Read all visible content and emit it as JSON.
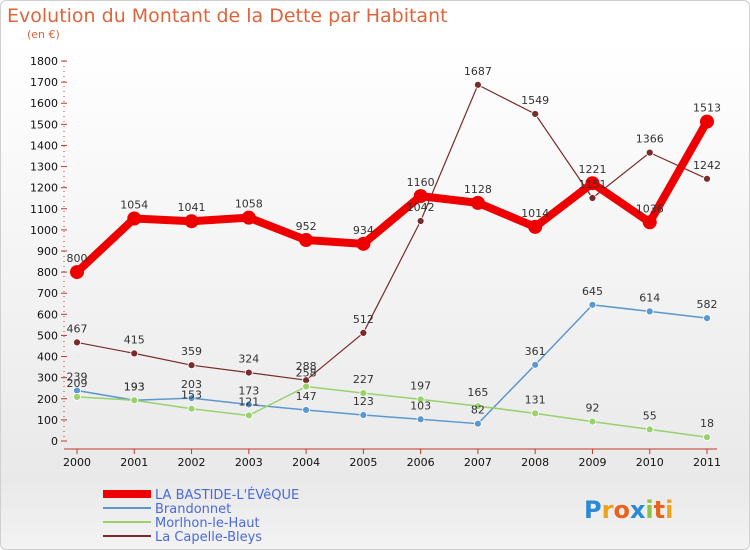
{
  "header": {
    "title": "Evolution du Montant de la Dette par Habitant",
    "unit": "(en €)"
  },
  "logo": {
    "text": "Proxiti",
    "letters": [
      "P",
      "r",
      "o",
      "x",
      "i",
      "t",
      "i"
    ],
    "colors": [
      "#2a8ad4",
      "#f0a21c",
      "#e8641e",
      "#2a8ad4",
      "#8bc43f",
      "#e8641e",
      "#f0a21c"
    ]
  },
  "chart_data": {
    "type": "line",
    "title": "Evolution du Montant de la Dette par Habitant",
    "subtitle": "(en €)",
    "x": [
      "2000",
      "2001",
      "2002",
      "2003",
      "2004",
      "2005",
      "2006",
      "2007",
      "2008",
      "2009",
      "2010",
      "2011"
    ],
    "ylim": [
      0,
      1800
    ],
    "yticks": [
      0,
      100,
      200,
      300,
      400,
      500,
      600,
      700,
      800,
      900,
      1000,
      1100,
      1200,
      1300,
      1400,
      1500,
      1600,
      1700,
      1800
    ],
    "grid": false,
    "legend_position": "bottom-left",
    "series": [
      {
        "name": "LA BASTIDE-L'ÉVêQUE",
        "color": "#ee0000",
        "width": 8,
        "marker": 7,
        "values": [
          800,
          1054,
          1041,
          1058,
          952,
          934,
          1160,
          1128,
          1014,
          1221,
          1036,
          1513
        ],
        "labels": [
          "800",
          "1054",
          "1041",
          "1058",
          "952",
          "934",
          "1160",
          "1128",
          "1014",
          "1221",
          "1036",
          "1513"
        ]
      },
      {
        "name": "Brandonnet",
        "color": "#5b98cf",
        "width": 1.5,
        "marker": 3.5,
        "values": [
          239,
          193,
          203,
          173,
          147,
          123,
          103,
          82,
          361,
          645,
          614,
          582
        ],
        "labels": [
          "239",
          "193",
          "203",
          "173",
          "147",
          "123",
          "103",
          "82",
          "361",
          "645",
          "614",
          "582"
        ]
      },
      {
        "name": "Morlhon-le-Haut",
        "color": "#99d16b",
        "width": 1.5,
        "marker": 3.5,
        "values": [
          209,
          193,
          153,
          121,
          258,
          227,
          197,
          165,
          131,
          92,
          55,
          18
        ],
        "labels": [
          "209",
          "193",
          "153",
          "121",
          "258",
          "227",
          "197",
          "165",
          "131",
          "92",
          "55",
          "18"
        ]
      },
      {
        "name": "La Capelle-Bleys",
        "color": "#7a2a2a",
        "width": 1.2,
        "marker": 3.5,
        "values": [
          467,
          415,
          359,
          324,
          288,
          512,
          1042,
          1687,
          1549,
          1151,
          1366,
          1242
        ],
        "labels": [
          "467",
          "415",
          "359",
          "324",
          "288",
          "512",
          "1042",
          "1687",
          "1549",
          "1151",
          "1366",
          "1242"
        ]
      }
    ]
  }
}
